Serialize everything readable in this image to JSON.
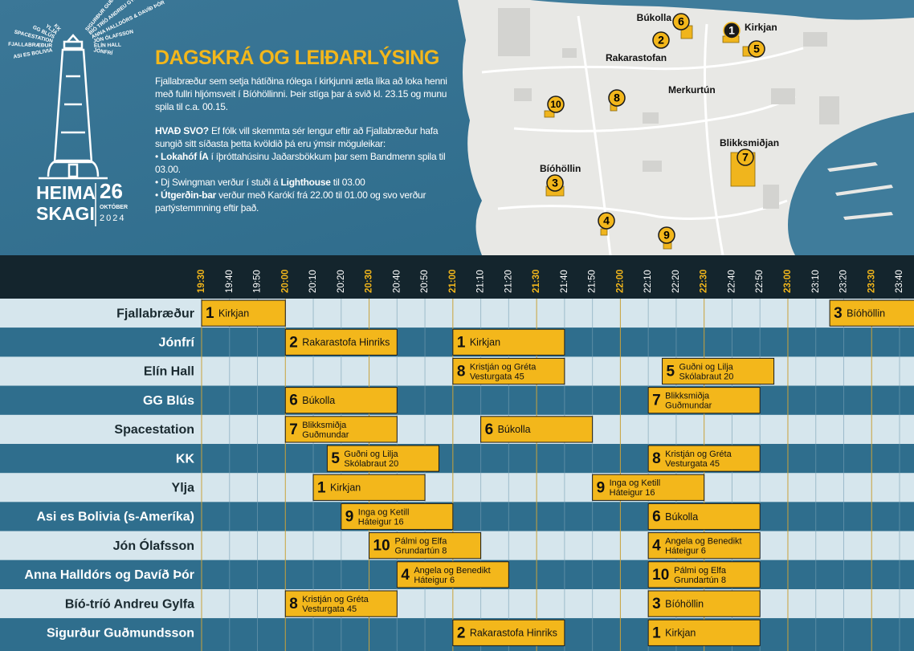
{
  "logo": {
    "rays": [
      "SIGURÐUR GUÐMUNDSSON",
      "BÍÓ TRÍÓ ANDREU GYLFA",
      "ANNA HALLDÓRS & DAVÍÐ ÞÓR",
      "JÓN ÓLAFSSON",
      "ELÍN HALL",
      "JÓNFRÍ",
      "KK",
      "YLJA",
      "GG BLÚS",
      "SPACESTATION",
      "FJALLABRÆÐUR",
      "ASI ES BOLIVIA"
    ],
    "line1": "HEIMA",
    "line2": "SKAGI",
    "day": "26",
    "month": "OKTÓBER",
    "year": "2024"
  },
  "header": {
    "title": "DAGSKRÁ OG LEIÐARLÝSING",
    "paragraphs": [
      [
        {
          "text": "Fjallabræður sem setja hátíðina rólega í kirkjunni ætla líka að loka henni með fullri hljómsveit í Bíóhöllinni. Þeir stíga þar á svið kl. 23.15 og munu spila til c.a. 00.15."
        }
      ],
      [
        {
          "text": "HVAÐ SVO?",
          "bold": true
        },
        {
          "text": " Ef fólk vill skemmta sér lengur eftir að Fjallabræður hafa sungið sitt síðasta þetta kvöldið þá eru ýmsir möguleikar:"
        }
      ],
      [
        {
          "text": "• "
        },
        {
          "text": "Lokahóf ÍA",
          "bold": true
        },
        {
          "text": " í íþróttahúsinu Jaðarsbökkum þar sem Bandmenn spila til 03.00."
        }
      ],
      [
        {
          "text": "• Dj Swingman verður í stuði á "
        },
        {
          "text": "Lighthouse",
          "bold": true
        },
        {
          "text": " til 03.00"
        }
      ],
      [
        {
          "text": "• "
        },
        {
          "text": "Útgerðin-bar",
          "bold": true
        },
        {
          "text": " verður með Karókí frá 22.00 til 01.00 og svo verður partýstemmning eftir það."
        }
      ]
    ]
  },
  "map": {
    "pins": [
      {
        "number": "6",
        "label": "Búkolla"
      },
      {
        "number": "2",
        "label": "Rakarastofan"
      },
      {
        "number": "1",
        "label": "Kirkjan"
      },
      {
        "number": "5"
      },
      {
        "number": "10"
      },
      {
        "number": "8"
      },
      {
        "number": "7",
        "label": "Blikksmiðjan"
      },
      {
        "number": "3",
        "label": "Bíóhöllin"
      },
      {
        "number": "4"
      },
      {
        "number": "9"
      }
    ],
    "labels": [
      "Merkurtún"
    ]
  },
  "schedule": {
    "times": [
      "19:30",
      "19:40",
      "19:50",
      "20:00",
      "20:10",
      "20:20",
      "20:30",
      "20:40",
      "20:50",
      "21:00",
      "21:10",
      "21:20",
      "21:30",
      "21:40",
      "21:50",
      "22:00",
      "22:10",
      "22:20",
      "22:30",
      "22:40",
      "22:50",
      "23:00",
      "23:10",
      "23:20",
      "23:30",
      "23:40"
    ],
    "rows": [
      {
        "name": "Fjallabræður",
        "events": [
          {
            "start": "19:30",
            "end": "20:00",
            "number": "1",
            "lines": [
              "Kirkjan"
            ]
          },
          {
            "start": "23:15",
            "end": "00:15",
            "number": "3",
            "lines": [
              "Bíóhöllin"
            ]
          }
        ]
      },
      {
        "name": "Jónfrí",
        "events": [
          {
            "start": "20:00",
            "end": "20:40",
            "number": "2",
            "lines": [
              "Rakarastofa Hinriks"
            ]
          },
          {
            "start": "21:00",
            "end": "21:40",
            "number": "1",
            "lines": [
              "Kirkjan"
            ]
          }
        ]
      },
      {
        "name": "Elín Hall",
        "events": [
          {
            "start": "21:00",
            "end": "21:40",
            "number": "8",
            "lines": [
              "Kristján og Gréta",
              "Vesturgata 45"
            ]
          },
          {
            "start": "22:15",
            "end": "22:55",
            "number": "5",
            "lines": [
              "Guðni og Lilja",
              "Skólabraut 20"
            ]
          }
        ]
      },
      {
        "name": "GG Blús",
        "events": [
          {
            "start": "20:00",
            "end": "20:40",
            "number": "6",
            "lines": [
              "Búkolla"
            ]
          },
          {
            "start": "22:10",
            "end": "22:50",
            "number": "7",
            "lines": [
              "Blikksmiðja",
              "Guðmundar"
            ]
          }
        ]
      },
      {
        "name": "Spacestation",
        "events": [
          {
            "start": "20:00",
            "end": "20:40",
            "number": "7",
            "lines": [
              "Blikksmiðja",
              "Guðmundar"
            ]
          },
          {
            "start": "21:10",
            "end": "21:50",
            "number": "6",
            "lines": [
              "Búkolla"
            ]
          }
        ]
      },
      {
        "name": "KK",
        "events": [
          {
            "start": "20:15",
            "end": "20:55",
            "number": "5",
            "lines": [
              "Guðni og Lilja",
              "Skólabraut 20"
            ]
          },
          {
            "start": "22:10",
            "end": "22:50",
            "number": "8",
            "lines": [
              "Kristján og Gréta",
              "Vesturgata 45"
            ]
          }
        ]
      },
      {
        "name": "Ylja",
        "events": [
          {
            "start": "20:10",
            "end": "20:50",
            "number": "1",
            "lines": [
              "Kirkjan"
            ]
          },
          {
            "start": "21:50",
            "end": "22:30",
            "number": "9",
            "lines": [
              "Inga og Ketill",
              "Háteigur 16"
            ]
          }
        ]
      },
      {
        "name": "Asi es Bolivia (s-Ameríka)",
        "events": [
          {
            "start": "20:20",
            "end": "21:00",
            "number": "9",
            "lines": [
              "Inga og Ketill",
              "Háteigur 16"
            ]
          },
          {
            "start": "22:10",
            "end": "22:50",
            "number": "6",
            "lines": [
              "Búkolla"
            ]
          }
        ]
      },
      {
        "name": "Jón Ólafsson",
        "events": [
          {
            "start": "20:30",
            "end": "21:10",
            "number": "10",
            "lines": [
              "Pálmi og Elfa",
              "Grundartún 8"
            ]
          },
          {
            "start": "22:10",
            "end": "22:50",
            "number": "4",
            "lines": [
              "Angela og Benedikt",
              "Háteigur 6"
            ]
          }
        ]
      },
      {
        "name": "Anna Halldórs og Davíð Þór",
        "events": [
          {
            "start": "20:40",
            "end": "21:20",
            "number": "4",
            "lines": [
              "Angela og Benedikt",
              "Háteigur 6"
            ]
          },
          {
            "start": "22:10",
            "end": "22:50",
            "number": "10",
            "lines": [
              "Pálmi og Elfa",
              "Grundartún 8"
            ]
          }
        ]
      },
      {
        "name": "Bíó-tríó Andreu Gylfa",
        "events": [
          {
            "start": "20:00",
            "end": "20:40",
            "number": "8",
            "lines": [
              "Kristján og Gréta",
              "Vesturgata 45"
            ]
          },
          {
            "start": "22:10",
            "end": "22:50",
            "number": "3",
            "lines": [
              "Bíóhöllin"
            ]
          }
        ]
      },
      {
        "name": "Sigurður Guðmundsson",
        "events": [
          {
            "start": "21:00",
            "end": "21:40",
            "number": "2",
            "lines": [
              "Rakarastofa Hinriks"
            ]
          },
          {
            "start": "22:10",
            "end": "22:50",
            "number": "1",
            "lines": [
              "Kirkjan"
            ]
          }
        ]
      }
    ]
  }
}
